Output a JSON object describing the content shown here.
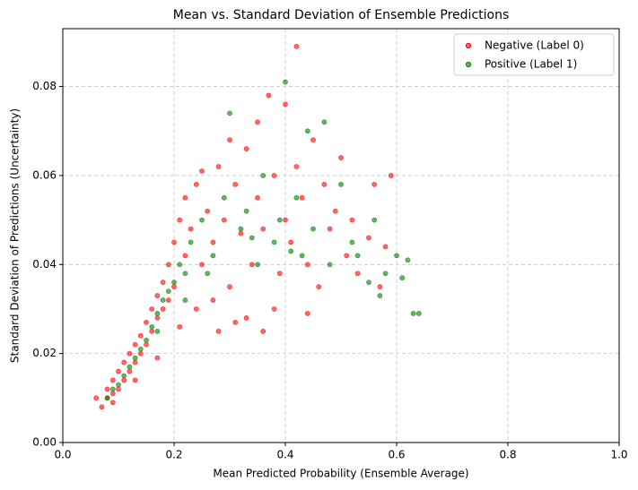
{
  "chart_data": {
    "type": "scatter",
    "title": "Mean vs. Standard Deviation of Ensemble Predictions",
    "xlabel": "Mean Predicted Probability (Ensemble Average)",
    "ylabel": "Standard Deviation of Predictions (Uncertainty)",
    "xlim": [
      0,
      1
    ],
    "ylim": [
      0,
      0.093
    ],
    "xticks": [
      {
        "value": 0,
        "label": "0.0"
      },
      0.2,
      0.4,
      0.6,
      0.8,
      {
        "value": 1,
        "label": "1.0"
      }
    ],
    "yticks": [
      {
        "value": 0,
        "label": "0.00"
      },
      {
        "value": 0.02,
        "label": "0.02"
      },
      {
        "value": 0.04,
        "label": "0.04"
      },
      {
        "value": 0.06,
        "label": "0.06"
      },
      {
        "value": 0.08,
        "label": "0.08"
      }
    ],
    "grid": true,
    "legend": "upper right",
    "series": [
      {
        "name": "Negative (Label 0)",
        "color": "#ff0000",
        "x": [
          0.07,
          0.08,
          0.08,
          0.09,
          0.09,
          0.1,
          0.1,
          0.11,
          0.11,
          0.12,
          0.12,
          0.13,
          0.13,
          0.14,
          0.14,
          0.15,
          0.15,
          0.16,
          0.16,
          0.17,
          0.17,
          0.18,
          0.18,
          0.19,
          0.19,
          0.2,
          0.2,
          0.21,
          0.22,
          0.22,
          0.23,
          0.24,
          0.25,
          0.25,
          0.26,
          0.27,
          0.28,
          0.29,
          0.3,
          0.3,
          0.31,
          0.32,
          0.33,
          0.34,
          0.35,
          0.35,
          0.36,
          0.37,
          0.38,
          0.39,
          0.4,
          0.4,
          0.41,
          0.42,
          0.42,
          0.43,
          0.44,
          0.45,
          0.46,
          0.47,
          0.48,
          0.49,
          0.5,
          0.51,
          0.52,
          0.53,
          0.55,
          0.56,
          0.58,
          0.59,
          0.06,
          0.09,
          0.13,
          0.17,
          0.21,
          0.24,
          0.27,
          0.31,
          0.36,
          0.44,
          0.57,
          0.38,
          0.33,
          0.28
        ],
        "values": [
          0.008,
          0.01,
          0.012,
          0.011,
          0.014,
          0.012,
          0.016,
          0.014,
          0.018,
          0.016,
          0.02,
          0.018,
          0.022,
          0.02,
          0.024,
          0.022,
          0.027,
          0.025,
          0.03,
          0.028,
          0.033,
          0.03,
          0.036,
          0.032,
          0.04,
          0.035,
          0.045,
          0.05,
          0.042,
          0.055,
          0.048,
          0.058,
          0.04,
          0.061,
          0.052,
          0.045,
          0.062,
          0.05,
          0.068,
          0.035,
          0.058,
          0.047,
          0.066,
          0.04,
          0.072,
          0.055,
          0.048,
          0.078,
          0.06,
          0.038,
          0.076,
          0.05,
          0.045,
          0.089,
          0.062,
          0.055,
          0.04,
          0.068,
          0.035,
          0.058,
          0.048,
          0.052,
          0.064,
          0.042,
          0.05,
          0.038,
          0.046,
          0.058,
          0.044,
          0.06,
          0.01,
          0.009,
          0.014,
          0.019,
          0.026,
          0.03,
          0.032,
          0.027,
          0.025,
          0.029,
          0.035,
          0.03,
          0.028,
          0.025
        ]
      },
      {
        "name": "Positive (Label 1)",
        "color": "#008000",
        "x": [
          0.08,
          0.09,
          0.1,
          0.11,
          0.12,
          0.13,
          0.14,
          0.15,
          0.16,
          0.17,
          0.18,
          0.19,
          0.2,
          0.21,
          0.22,
          0.23,
          0.25,
          0.27,
          0.29,
          0.3,
          0.32,
          0.33,
          0.35,
          0.36,
          0.38,
          0.39,
          0.4,
          0.41,
          0.42,
          0.44,
          0.45,
          0.47,
          0.48,
          0.5,
          0.52,
          0.53,
          0.55,
          0.56,
          0.58,
          0.6,
          0.61,
          0.62,
          0.63,
          0.64,
          0.17,
          0.22,
          0.26,
          0.34,
          0.43,
          0.57
        ],
        "values": [
          0.01,
          0.012,
          0.013,
          0.015,
          0.017,
          0.019,
          0.021,
          0.023,
          0.026,
          0.029,
          0.032,
          0.034,
          0.036,
          0.04,
          0.038,
          0.045,
          0.05,
          0.042,
          0.055,
          0.074,
          0.048,
          0.052,
          0.04,
          0.06,
          0.045,
          0.05,
          0.081,
          0.043,
          0.055,
          0.07,
          0.048,
          0.072,
          0.04,
          0.058,
          0.045,
          0.042,
          0.036,
          0.05,
          0.038,
          0.042,
          0.037,
          0.041,
          0.029,
          0.029,
          0.025,
          0.032,
          0.038,
          0.046,
          0.042,
          0.033
        ]
      }
    ]
  }
}
